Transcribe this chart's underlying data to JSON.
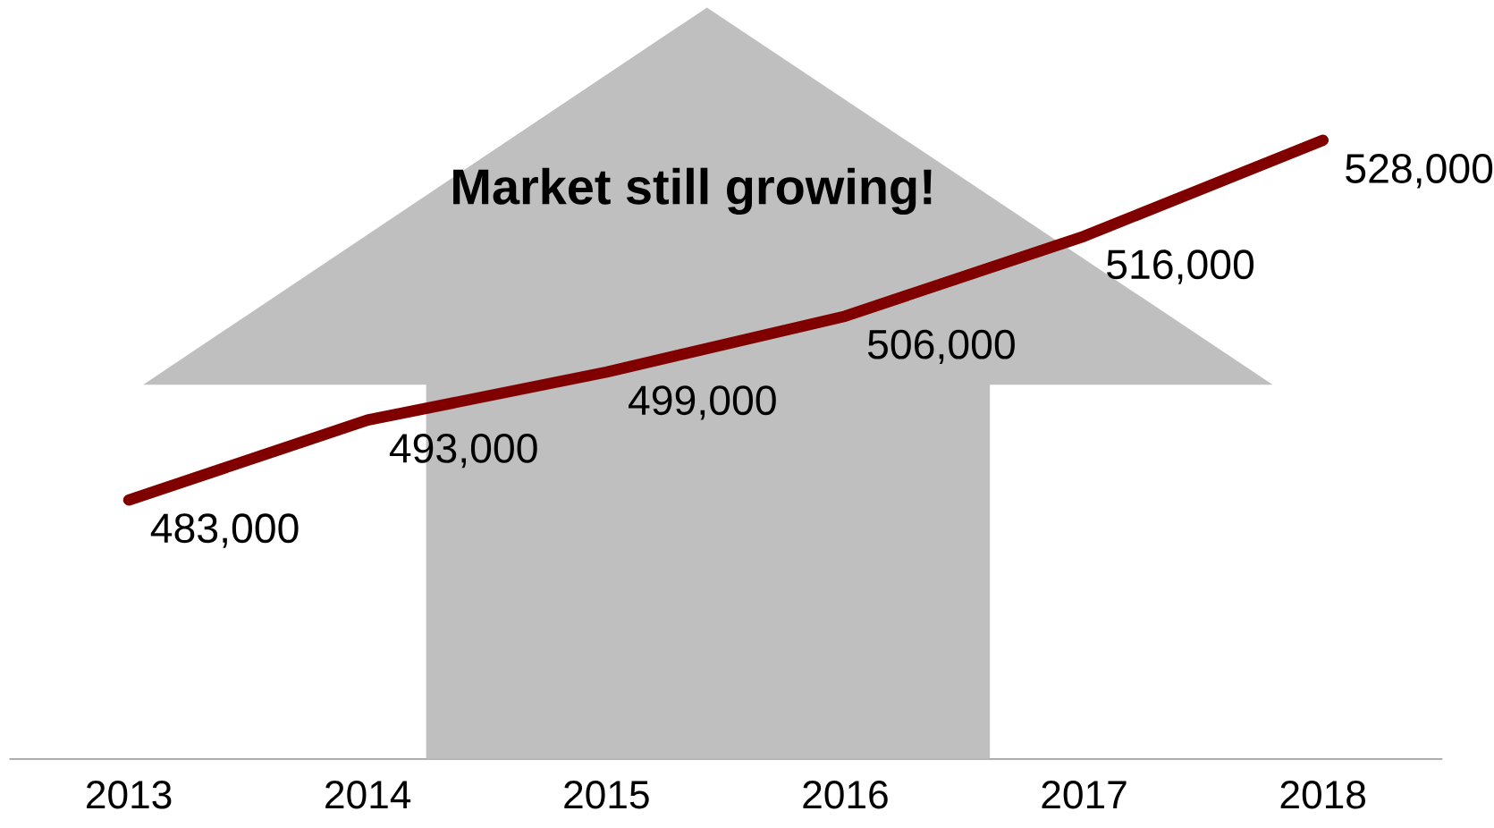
{
  "chart_data": {
    "type": "line",
    "categories": [
      "2013",
      "2014",
      "2015",
      "2016",
      "2017",
      "2018"
    ],
    "series": [
      {
        "color": "#800000",
        "values": [
          483000,
          493000,
          499000,
          506000,
          516000,
          528000
        ],
        "value_labels": [
          "483,000",
          "493,000",
          "499,000",
          "506,000",
          "516,000",
          "528,000"
        ]
      }
    ],
    "annotations": [
      "Market still growing!"
    ],
    "grid": false,
    "marker": "none",
    "line_style": "solid"
  }
}
